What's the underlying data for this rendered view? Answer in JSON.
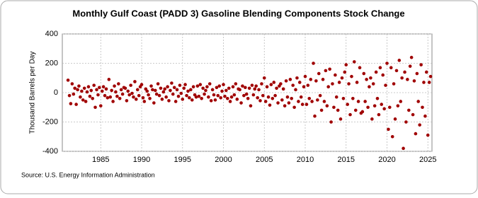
{
  "chart_data": {
    "type": "scatter",
    "title": "Monthly Gulf Coast (PADD 3) Gasoline Blending Components Stock Change",
    "y_label": "Thousand Barrels per Day",
    "source": "Source: U.S. Energy Information Administration",
    "color": "#a00000",
    "grid": true,
    "xlim": [
      1980.3,
      2025.5
    ],
    "xticks": [
      1985,
      1990,
      1995,
      2000,
      2005,
      2010,
      2015,
      2020,
      2025
    ],
    "ylim": [
      -400,
      400
    ],
    "yticks": [
      -400,
      -200,
      0,
      200,
      400
    ],
    "x": [
      1981,
      1981.17,
      1981.33,
      1981.5,
      1981.67,
      1981.83,
      1982,
      1982.17,
      1982.33,
      1982.5,
      1982.67,
      1982.83,
      1983,
      1983.17,
      1983.33,
      1983.5,
      1983.67,
      1983.83,
      1984,
      1984.17,
      1984.33,
      1984.5,
      1984.67,
      1984.83,
      1985,
      1985.17,
      1985.33,
      1985.5,
      1985.67,
      1985.83,
      1986,
      1986.17,
      1986.33,
      1986.5,
      1986.67,
      1986.83,
      1987,
      1987.17,
      1987.33,
      1987.5,
      1987.67,
      1987.83,
      1988,
      1988.17,
      1988.33,
      1988.5,
      1988.67,
      1988.83,
      1989,
      1989.17,
      1989.33,
      1989.5,
      1989.67,
      1989.83,
      1990,
      1990.17,
      1990.33,
      1990.5,
      1990.67,
      1990.83,
      1991,
      1991.17,
      1991.33,
      1991.5,
      1991.67,
      1991.83,
      1992,
      1992.17,
      1992.33,
      1992.5,
      1992.67,
      1992.83,
      1993,
      1993.17,
      1993.33,
      1993.5,
      1993.67,
      1993.83,
      1994,
      1994.17,
      1994.33,
      1994.5,
      1994.67,
      1994.83,
      1995,
      1995.17,
      1995.33,
      1995.5,
      1995.67,
      1995.83,
      1996,
      1996.17,
      1996.33,
      1996.5,
      1996.67,
      1996.83,
      1997,
      1997.17,
      1997.33,
      1997.5,
      1997.67,
      1997.83,
      1998,
      1998.17,
      1998.33,
      1998.5,
      1998.67,
      1998.83,
      1999,
      1999.17,
      1999.33,
      1999.5,
      1999.67,
      1999.83,
      2000,
      2000.17,
      2000.33,
      2000.5,
      2000.67,
      2000.83,
      2001,
      2001.17,
      2001.33,
      2001.5,
      2001.67,
      2001.83,
      2002,
      2002.17,
      2002.33,
      2002.5,
      2002.67,
      2002.83,
      2003,
      2003.17,
      2003.33,
      2003.5,
      2003.67,
      2003.83,
      2004,
      2004.17,
      2004.33,
      2004.5,
      2004.67,
      2004.83,
      2005,
      2005.17,
      2005.33,
      2005.5,
      2005.67,
      2005.83,
      2006,
      2006.17,
      2006.33,
      2006.5,
      2006.67,
      2006.83,
      2007,
      2007.17,
      2007.33,
      2007.5,
      2007.67,
      2007.83,
      2008,
      2008.17,
      2008.33,
      2008.5,
      2008.67,
      2008.83,
      2009,
      2009.17,
      2009.33,
      2009.5,
      2009.67,
      2009.83,
      2010,
      2010.17,
      2010.33,
      2010.5,
      2010.67,
      2010.83,
      2011,
      2011.17,
      2011.33,
      2011.5,
      2011.67,
      2011.83,
      2012,
      2012.17,
      2012.33,
      2012.5,
      2012.67,
      2012.83,
      2013,
      2013.17,
      2013.33,
      2013.5,
      2013.67,
      2013.83,
      2014,
      2014.17,
      2014.33,
      2014.5,
      2014.67,
      2014.83,
      2015,
      2015.17,
      2015.33,
      2015.5,
      2015.67,
      2015.83,
      2016,
      2016.17,
      2016.33,
      2016.5,
      2016.67,
      2016.83,
      2017,
      2017.17,
      2017.33,
      2017.5,
      2017.67,
      2017.83,
      2018,
      2018.17,
      2018.33,
      2018.5,
      2018.67,
      2018.83,
      2019,
      2019.17,
      2019.33,
      2019.5,
      2019.67,
      2019.83,
      2020,
      2020.17,
      2020.33,
      2020.5,
      2020.67,
      2020.83,
      2021,
      2021.17,
      2021.33,
      2021.5,
      2021.67,
      2021.83,
      2022,
      2022.17,
      2022.33,
      2022.5,
      2022.67,
      2022.83,
      2023,
      2023.17,
      2023.33,
      2023.5,
      2023.67,
      2023.83,
      2024,
      2024.17,
      2024.33,
      2024.5,
      2024.67,
      2024.83,
      2025,
      2025.17,
      2025.33
    ],
    "values": [
      85,
      -20,
      -75,
      60,
      -10,
      30,
      -80,
      20,
      45,
      -30,
      10,
      -50,
      30,
      -60,
      5,
      40,
      -25,
      15,
      -40,
      50,
      -100,
      20,
      -15,
      35,
      -90,
      10,
      40,
      -20,
      25,
      -35,
      90,
      -30,
      15,
      -60,
      45,
      5,
      -25,
      60,
      -40,
      20,
      -10,
      35,
      30,
      -55,
      10,
      -15,
      50,
      -5,
      -30,
      75,
      -45,
      20,
      -20,
      40,
      55,
      -35,
      -60,
      25,
      10,
      -15,
      -40,
      45,
      20,
      -70,
      15,
      -10,
      60,
      -20,
      30,
      -45,
      5,
      25,
      -30,
      40,
      -55,
      15,
      65,
      -10,
      35,
      -60,
      20,
      -25,
      50,
      -5,
      -45,
      30,
      55,
      -20,
      10,
      -35,
      20,
      -50,
      40,
      -15,
      -30,
      45,
      -25,
      55,
      -40,
      30,
      -10,
      15,
      40,
      -30,
      60,
      -55,
      20,
      -15,
      -50,
      35,
      -20,
      45,
      -35,
      10,
      55,
      -25,
      15,
      -40,
      30,
      -60,
      -30,
      40,
      -15,
      60,
      -45,
      25,
      20,
      -70,
      45,
      -20,
      35,
      -10,
      -40,
      30,
      -90,
      50,
      -15,
      25,
      45,
      -35,
      20,
      -55,
      60,
      -20,
      100,
      -60,
      40,
      -30,
      -85,
      55,
      -40,
      70,
      -20,
      30,
      -70,
      45,
      60,
      -50,
      25,
      -90,
      80,
      -30,
      -70,
      90,
      -40,
      50,
      -100,
      20,
      100,
      -60,
      70,
      -30,
      -80,
      40,
      110,
      -80,
      50,
      -40,
      90,
      -60,
      200,
      -160,
      80,
      -50,
      130,
      -20,
      -120,
      90,
      -60,
      150,
      -90,
      40,
      160,
      -200,
      60,
      -100,
      120,
      -30,
      -120,
      70,
      -180,
      100,
      -40,
      140,
      190,
      -80,
      60,
      -150,
      110,
      -40,
      210,
      -120,
      70,
      -60,
      170,
      -140,
      -130,
      130,
      -60,
      90,
      -100,
      40,
      100,
      -180,
      60,
      -90,
      140,
      -40,
      -150,
      170,
      -80,
      120,
      -110,
      50,
      200,
      -250,
      -100,
      170,
      -300,
      60,
      -180,
      150,
      -90,
      220,
      -60,
      100,
      -380,
      140,
      -200,
      90,
      -120,
      180,
      240,
      -150,
      80,
      -280,
      130,
      -60,
      -220,
      190,
      -100,
      70,
      -160,
      140,
      -290,
      70,
      110
    ]
  }
}
